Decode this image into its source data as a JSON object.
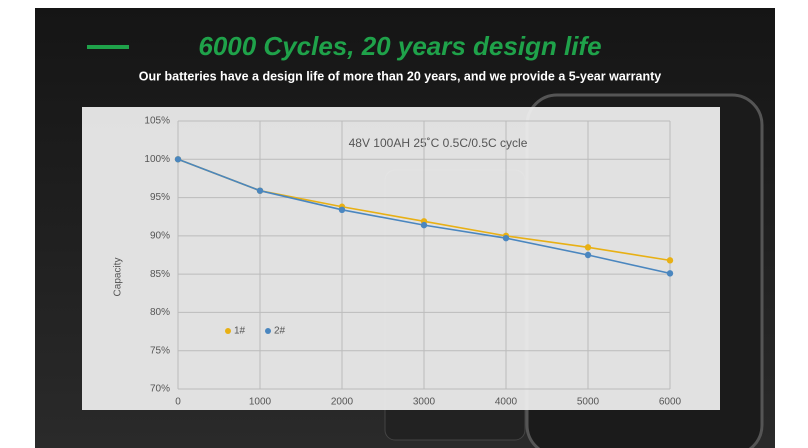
{
  "header": {
    "title": "6000 Cycles, 20 years design life",
    "subtitle": "Our batteries have a design life of more than 20 years, and we provide a 5-year warranty"
  },
  "chart_data": {
    "type": "line",
    "title": "48V 100AH 25˚C 0.5C/0.5C cycle",
    "y_label": "Capacity",
    "x": [
      0,
      1000,
      2000,
      3000,
      4000,
      5000,
      6000
    ],
    "series": [
      {
        "name": "1#",
        "color": "#e8b014",
        "values": [
          100,
          95.9,
          93.8,
          91.9,
          90,
          88.5,
          86.8
        ]
      },
      {
        "name": "2#",
        "color": "#4a86bf",
        "values": [
          100,
          95.9,
          93.4,
          91.4,
          89.7,
          87.5,
          85.1
        ]
      }
    ],
    "xlim": [
      0,
      6000
    ],
    "xticks": [
      0,
      1000,
      2000,
      3000,
      4000,
      5000,
      6000
    ],
    "ylim": [
      70,
      105
    ],
    "yticks": [
      {
        "value": 70,
        "label": "70%"
      },
      {
        "value": 75,
        "label": "75%"
      },
      {
        "value": 80,
        "label": "80%"
      },
      {
        "value": 85,
        "label": "85%"
      },
      {
        "value": 90,
        "label": "90%"
      },
      {
        "value": 95,
        "label": "95%"
      },
      {
        "value": 100,
        "label": "100%"
      },
      {
        "value": 105,
        "label": "105%"
      }
    ],
    "grid": true
  }
}
